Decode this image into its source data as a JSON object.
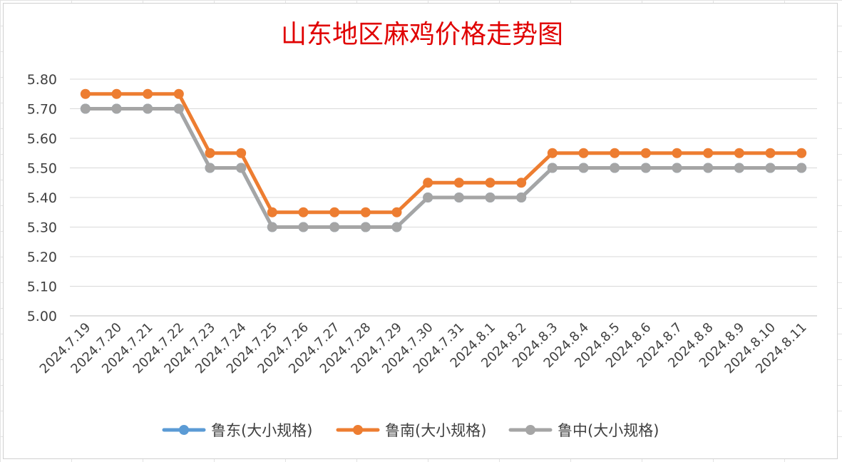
{
  "chart_data": {
    "type": "line",
    "title": "山东地区麻鸡价格走势图",
    "categories": [
      "2024.7.19",
      "2024.7.20",
      "2024.7.21",
      "2024.7.22",
      "2024.7.23",
      "2024.7.24",
      "2024.7.25",
      "2024.7.26",
      "2024.7.27",
      "2024.7.28",
      "2024.7.29",
      "2024.7.30",
      "2024.7.31",
      "2024.8.1",
      "2024.8.2",
      "2024.8.3",
      "2024.8.4",
      "2024.8.5",
      "2024.8.6",
      "2024.8.7",
      "2024.8.8",
      "2024.8.9",
      "2024.8.10",
      "2024.8.11"
    ],
    "yticks": [
      "5.00",
      "5.10",
      "5.20",
      "5.30",
      "5.40",
      "5.50",
      "5.60",
      "5.70",
      "5.80"
    ],
    "ylim": [
      5.0,
      5.8
    ],
    "grid": true,
    "legend_position": "bottom",
    "series": [
      {
        "name": "鲁东(大小规格)",
        "color": "#5b9bd5",
        "values": [
          5.7,
          5.7,
          5.7,
          5.7,
          5.5,
          5.5,
          5.3,
          5.3,
          5.3,
          5.3,
          5.3,
          5.4,
          5.4,
          5.4,
          5.4,
          5.5,
          5.5,
          5.5,
          5.5,
          5.5,
          5.5,
          5.5,
          5.5,
          5.5
        ]
      },
      {
        "name": "鲁南(大小规格)",
        "color": "#ed7d31",
        "values": [
          5.75,
          5.75,
          5.75,
          5.75,
          5.55,
          5.55,
          5.35,
          5.35,
          5.35,
          5.35,
          5.35,
          5.45,
          5.45,
          5.45,
          5.45,
          5.55,
          5.55,
          5.55,
          5.55,
          5.55,
          5.55,
          5.55,
          5.55,
          5.55
        ]
      },
      {
        "name": "鲁中(大小规格)",
        "color": "#a5a5a5",
        "values": [
          5.7,
          5.7,
          5.7,
          5.7,
          5.5,
          5.5,
          5.3,
          5.3,
          5.3,
          5.3,
          5.3,
          5.4,
          5.4,
          5.4,
          5.4,
          5.5,
          5.5,
          5.5,
          5.5,
          5.5,
          5.5,
          5.5,
          5.5,
          5.5
        ]
      }
    ]
  }
}
